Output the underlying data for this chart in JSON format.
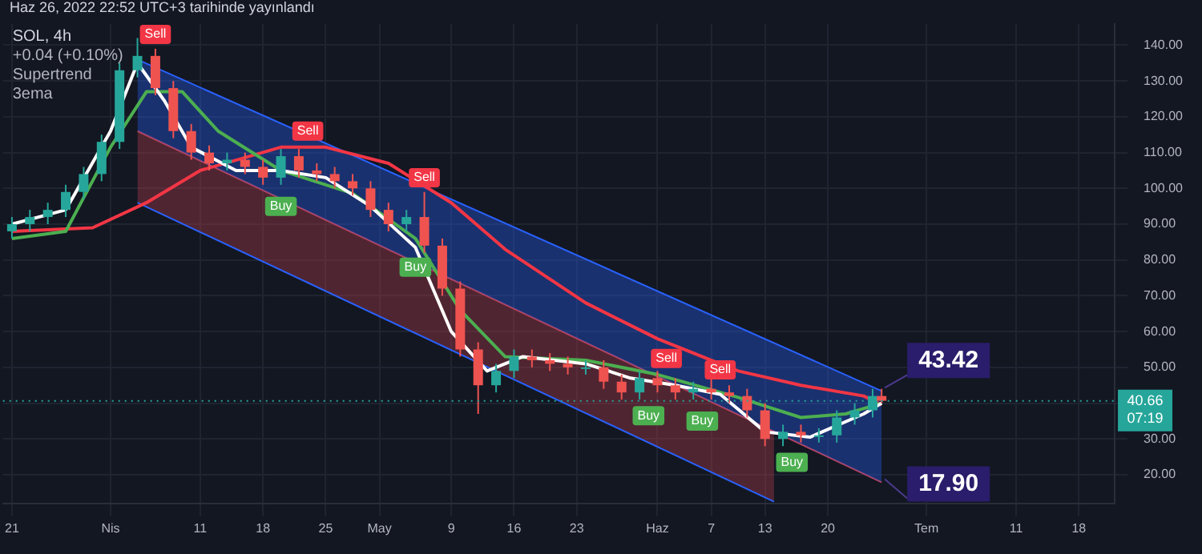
{
  "chart_data": {
    "type": "candlestick",
    "title": "SOL, 4h",
    "subtitle": "Haz 26, 2022 22:52 UTC+3 tarihinde yayınlandı",
    "x": [
      "2022-03-21",
      "2022-03-23",
      "2022-03-25",
      "2022-03-27",
      "2022-03-29",
      "2022-03-31",
      "2022-04-02",
      "2022-04-04",
      "2022-04-06",
      "2022-04-08",
      "2022-04-10",
      "2022-04-12",
      "2022-04-14",
      "2022-04-16",
      "2022-04-18",
      "2022-04-20",
      "2022-04-22",
      "2022-04-24",
      "2022-04-26",
      "2022-04-28",
      "2022-04-30",
      "2022-05-02",
      "2022-05-04",
      "2022-05-06",
      "2022-05-08",
      "2022-05-10",
      "2022-05-12",
      "2022-05-14",
      "2022-05-16",
      "2022-05-18",
      "2022-05-20",
      "2022-05-22",
      "2022-05-24",
      "2022-05-26",
      "2022-05-28",
      "2022-05-30",
      "2022-06-01",
      "2022-06-03",
      "2022-06-05",
      "2022-06-07",
      "2022-06-09",
      "2022-06-11",
      "2022-06-13",
      "2022-06-15",
      "2022-06-17",
      "2022-06-19",
      "2022-06-21",
      "2022-06-23",
      "2022-06-25",
      "2022-06-26"
    ],
    "ohlc": [
      [
        88,
        92,
        86,
        90
      ],
      [
        90,
        94,
        88,
        92
      ],
      [
        92,
        96,
        90,
        94
      ],
      [
        94,
        101,
        92,
        99
      ],
      [
        99,
        106,
        97,
        104
      ],
      [
        104,
        115,
        102,
        113
      ],
      [
        113,
        135,
        111,
        133
      ],
      [
        133,
        142,
        131,
        137
      ],
      [
        137,
        139,
        126,
        128
      ],
      [
        128,
        130,
        114,
        116
      ],
      [
        116,
        118,
        108,
        110
      ],
      [
        110,
        112,
        105,
        107
      ],
      [
        107,
        110,
        105,
        108
      ],
      [
        108,
        110,
        104,
        106
      ],
      [
        106,
        108,
        101,
        103
      ],
      [
        103,
        111,
        101,
        109
      ],
      [
        109,
        111,
        103,
        105
      ],
      [
        105,
        107,
        102,
        104
      ],
      [
        104,
        106,
        100,
        102
      ],
      [
        102,
        104,
        98,
        100
      ],
      [
        100,
        102,
        92,
        94
      ],
      [
        94,
        96,
        88,
        90
      ],
      [
        90,
        94,
        88,
        92
      ],
      [
        92,
        99,
        82,
        84
      ],
      [
        84,
        86,
        70,
        72
      ],
      [
        72,
        74,
        53,
        55
      ],
      [
        55,
        57,
        37,
        45
      ],
      [
        45,
        51,
        43,
        49
      ],
      [
        49,
        55,
        47,
        53
      ],
      [
        53,
        55,
        50,
        52
      ],
      [
        52,
        54,
        49,
        51
      ],
      [
        51,
        53,
        48,
        50
      ],
      [
        50,
        52,
        48,
        50
      ],
      [
        50,
        52,
        44,
        46
      ],
      [
        46,
        48,
        41,
        43
      ],
      [
        43,
        49,
        41,
        47
      ],
      [
        47,
        49,
        43,
        45
      ],
      [
        45,
        47,
        41,
        43
      ],
      [
        43,
        46,
        41,
        44
      ],
      [
        44,
        47,
        41,
        43
      ],
      [
        43,
        45,
        40,
        42
      ],
      [
        42,
        44,
        36,
        38
      ],
      [
        38,
        40,
        28,
        30
      ],
      [
        30,
        34,
        28,
        32
      ],
      [
        32,
        34,
        29,
        31
      ],
      [
        31,
        33,
        29,
        31
      ],
      [
        31,
        38,
        29,
        36
      ],
      [
        36,
        40,
        34,
        38
      ],
      [
        38,
        44,
        36,
        42
      ],
      [
        42,
        44,
        40,
        40.66
      ]
    ],
    "series": [
      {
        "type": "area",
        "color": "#2962ff",
        "x": [
          "2022-04-04",
          "2022-06-26"
        ],
        "values": [
          136,
          43.42
        ]
      },
      {
        "type": "area",
        "color": "#c2404f",
        "x": [
          "2022-04-04",
          "2022-06-26"
        ],
        "values": [
          116,
          17.9
        ]
      },
      {
        "type": "line",
        "color": "#2962ff",
        "x": [
          "2022-04-04",
          "2022-06-14"
        ],
        "values": [
          96,
          12.5
        ]
      },
      {
        "type": "line",
        "color": "#f23645",
        "x": [
          "2022-03-21",
          "2022-03-30",
          "2022-04-05",
          "2022-04-11",
          "2022-04-20",
          "2022-04-25",
          "2022-05-02",
          "2022-05-09",
          "2022-05-15",
          "2022-05-24",
          "2022-06-01",
          "2022-06-10",
          "2022-06-17",
          "2022-06-24",
          "2022-06-26"
        ],
        "values": [
          88,
          89,
          96,
          105,
          111.5,
          111.5,
          107,
          96,
          83,
          68,
          58,
          49,
          45,
          42,
          39.5
        ]
      },
      {
        "type": "line",
        "color": "#4caf50",
        "x": [
          "2022-03-21",
          "2022-03-27",
          "2022-04-01",
          "2022-04-05",
          "2022-04-09",
          "2022-04-13",
          "2022-04-20",
          "2022-04-28",
          "2022-05-05",
          "2022-05-10",
          "2022-05-15",
          "2022-05-24",
          "2022-06-01",
          "2022-06-10",
          "2022-06-17",
          "2022-06-22",
          "2022-06-26"
        ],
        "values": [
          86,
          88,
          111.5,
          127,
          127,
          116,
          105,
          98.6,
          86,
          66,
          53,
          52,
          48,
          41.6,
          36,
          37,
          40
        ]
      },
      {
        "type": "line",
        "color": "#ffffff",
        "x": [
          "2022-03-21",
          "2022-03-27",
          "2022-04-01",
          "2022-04-04",
          "2022-04-07",
          "2022-04-10",
          "2022-04-15",
          "2022-04-20",
          "2022-04-25",
          "2022-04-30",
          "2022-05-05",
          "2022-05-09",
          "2022-05-13",
          "2022-05-17",
          "2022-05-24",
          "2022-05-29",
          "2022-06-03",
          "2022-06-08",
          "2022-06-13",
          "2022-06-18",
          "2022-06-24",
          "2022-06-26"
        ],
        "values": [
          90,
          94,
          116,
          135,
          124.5,
          111.5,
          105,
          105,
          103,
          95,
          83.5,
          60,
          49,
          53,
          51,
          47,
          45,
          42.5,
          32,
          30.5,
          37,
          40
        ]
      }
    ],
    "xlim": [
      "2022-03-20",
      "2022-07-22"
    ],
    "xticks": [
      {
        "value": "2022-03-21",
        "label": "21"
      },
      {
        "value": "2022-04-01",
        "label": "Nis"
      },
      {
        "value": "2022-04-11",
        "label": "11"
      },
      {
        "value": "2022-04-18",
        "label": "18"
      },
      {
        "value": "2022-04-25",
        "label": "25"
      },
      {
        "value": "2022-05-01",
        "label": "May"
      },
      {
        "value": "2022-05-09",
        "label": "9"
      },
      {
        "value": "2022-05-16",
        "label": "16"
      },
      {
        "value": "2022-05-23",
        "label": "23"
      },
      {
        "value": "2022-06-01",
        "label": "Haz"
      },
      {
        "value": "2022-06-07",
        "label": "7"
      },
      {
        "value": "2022-06-13",
        "label": "13"
      },
      {
        "value": "2022-06-20",
        "label": "20"
      },
      {
        "value": "2022-07-01",
        "label": "Tem"
      },
      {
        "value": "2022-07-11",
        "label": "11"
      },
      {
        "value": "2022-07-18",
        "label": "18"
      }
    ],
    "ylim": [
      12,
      146
    ],
    "yticks": [
      {
        "value": 20,
        "label": "20.00"
      },
      {
        "value": 30,
        "label": "30.00"
      },
      {
        "value": 40,
        "label": null
      },
      {
        "value": 50,
        "label": "50.00"
      },
      {
        "value": 60,
        "label": "60.00"
      },
      {
        "value": 70,
        "label": "70.00"
      },
      {
        "value": 80,
        "label": "80.00"
      },
      {
        "value": 90,
        "label": "90.00"
      },
      {
        "value": 100,
        "label": "100.00"
      },
      {
        "value": 110,
        "label": "110.00"
      },
      {
        "value": 120,
        "label": "120.00"
      },
      {
        "value": 130,
        "label": "130.00"
      },
      {
        "value": 140,
        "label": "140.00"
      }
    ],
    "ref_lines": [
      {
        "axis": "y",
        "value": 40.66,
        "label": "40.66 07:19",
        "color": "#26a69a",
        "line_style": "dotted"
      }
    ],
    "annotations": [
      "+0.04 (+0.10%)",
      "Supertrend",
      "3ema",
      {
        "text": "43.42",
        "x": "2022-06-26",
        "y": 43.42
      },
      {
        "text": "17.90",
        "x": "2022-06-26",
        "y": 17.9
      },
      {
        "text": "Sell",
        "x": "2022-04-06",
        "y": 143
      },
      {
        "text": "Buy",
        "x": "2022-04-20",
        "y": 95
      },
      {
        "text": "Sell",
        "x": "2022-04-23",
        "y": 116
      },
      {
        "text": "Buy",
        "x": "2022-05-05",
        "y": 78
      },
      {
        "text": "Sell",
        "x": "2022-05-06",
        "y": 103
      },
      {
        "text": "Buy",
        "x": "2022-05-31",
        "y": 36.5
      },
      {
        "text": "Sell",
        "x": "2022-06-02",
        "y": 52.5
      },
      {
        "text": "Buy",
        "x": "2022-06-06",
        "y": 35
      },
      {
        "text": "Sell",
        "x": "2022-06-08",
        "y": 49.3
      },
      {
        "text": "Buy",
        "x": "2022-06-16",
        "y": 23.5
      }
    ],
    "grid": true,
    "legend": false
  }
}
